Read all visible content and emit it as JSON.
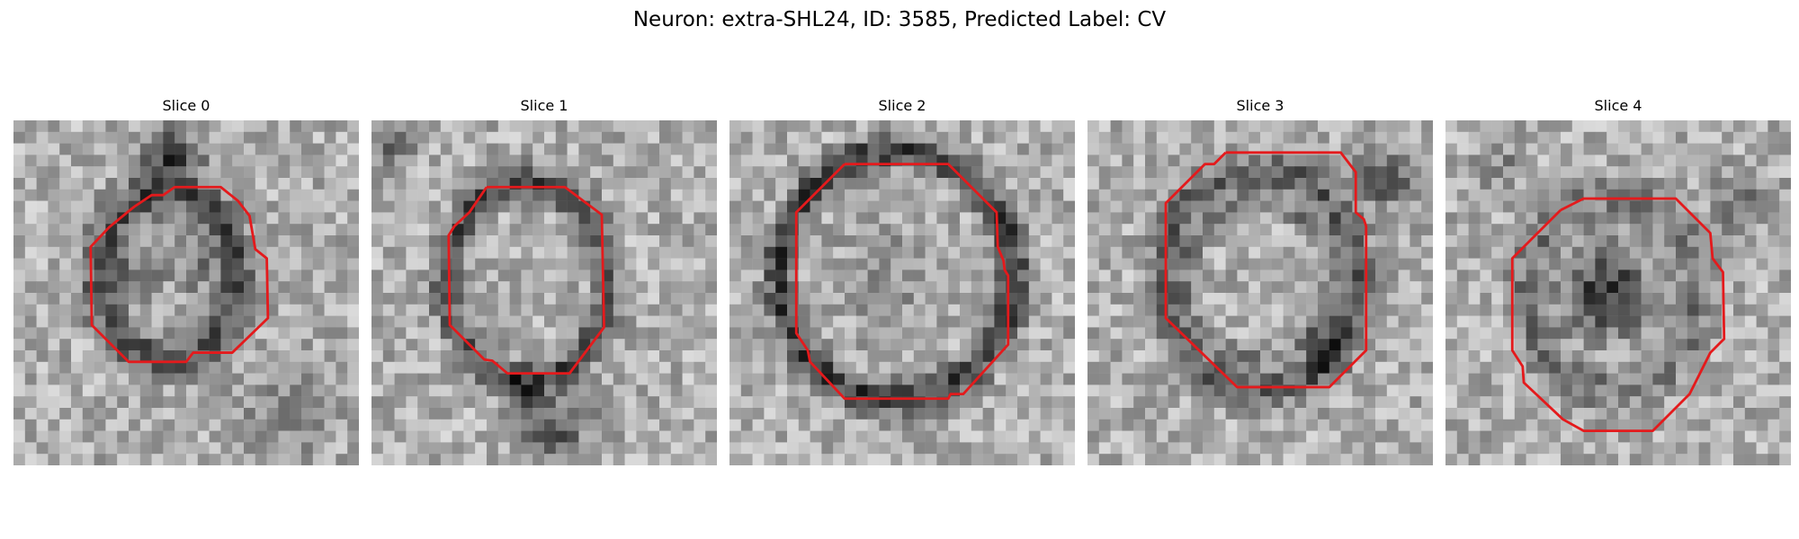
{
  "figure": {
    "title": "Neuron: extra-SHL24, ID: 3585, Predicted Label: CV"
  },
  "panels": [
    {
      "title": "Slice 0"
    },
    {
      "title": "Slice 1"
    },
    {
      "title": "Slice 2"
    },
    {
      "title": "Slice 3"
    },
    {
      "title": "Slice 4"
    }
  ],
  "colors": {
    "contour": "#e41a1c",
    "background": "#ffffff"
  }
}
